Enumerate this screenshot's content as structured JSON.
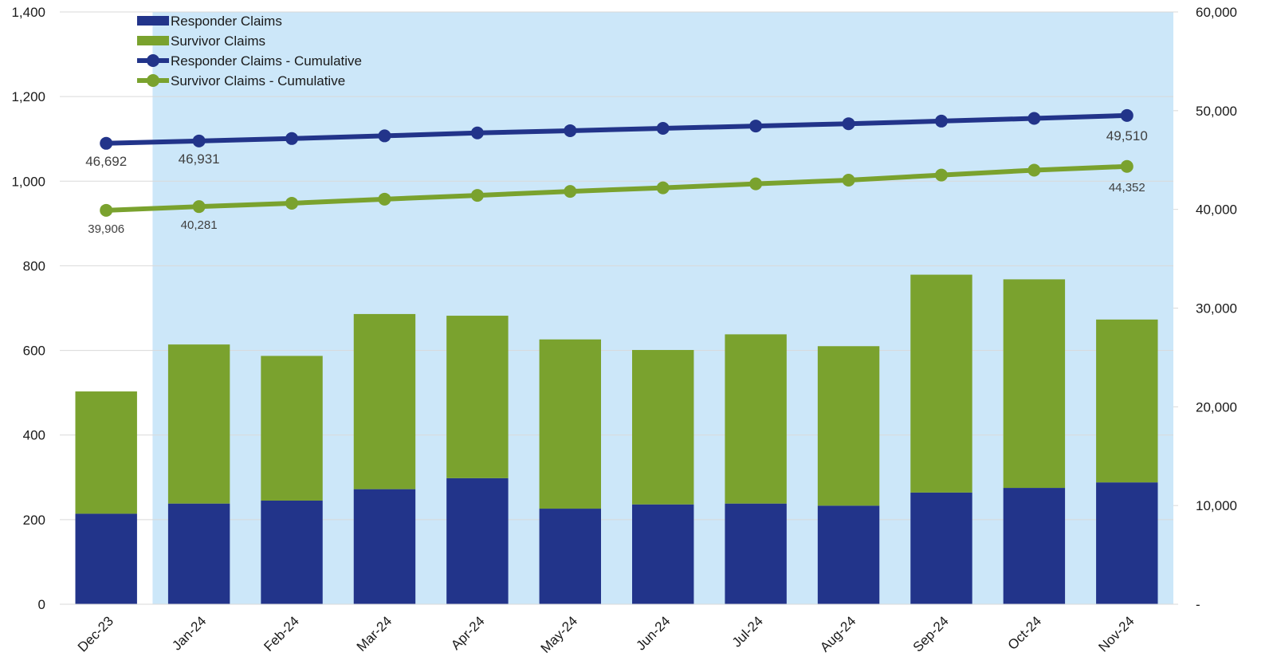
{
  "chart_data": {
    "type": "bar",
    "stacked": true,
    "categories": [
      "Dec-23",
      "Jan-24",
      "Feb-24",
      "Mar-24",
      "Apr-24",
      "May-24",
      "Jun-24",
      "Jul-24",
      "Aug-24",
      "Sep-24",
      "Oct-24",
      "Nov-24"
    ],
    "series": [
      {
        "name": "Responder Claims",
        "kind": "bar",
        "axis": "left",
        "color": "#22348a",
        "values": [
          214,
          238,
          245,
          272,
          298,
          226,
          236,
          238,
          233,
          264,
          275,
          288
        ]
      },
      {
        "name": "Survivor Claims",
        "kind": "bar",
        "axis": "left",
        "color": "#7aa22e",
        "values": [
          289,
          376,
          342,
          414,
          384,
          400,
          365,
          400,
          377,
          515,
          493,
          385
        ]
      },
      {
        "name": "Responder Claims - Cumulative",
        "kind": "line",
        "axis": "right",
        "color": "#22348a",
        "values": [
          46692,
          46931,
          47176,
          47448,
          47746,
          47972,
          48208,
          48446,
          48679,
          48943,
          49218,
          49510
        ]
      },
      {
        "name": "Survivor Claims - Cumulative",
        "kind": "line",
        "axis": "right",
        "color": "#7aa22e",
        "values": [
          39906,
          40281,
          40623,
          41037,
          41421,
          41821,
          42186,
          42586,
          42963,
          43478,
          43971,
          44352
        ]
      }
    ],
    "data_labels": [
      {
        "series": 2,
        "index": 0,
        "text": "46,692"
      },
      {
        "series": 2,
        "index": 1,
        "text": "46,931"
      },
      {
        "series": 2,
        "index": 11,
        "text": "49,510"
      },
      {
        "series": 3,
        "index": 0,
        "text": "39,906"
      },
      {
        "series": 3,
        "index": 1,
        "text": "40,281"
      },
      {
        "series": 3,
        "index": 11,
        "text": "44,352"
      }
    ],
    "y_left": {
      "ylim": [
        0,
        1400
      ],
      "ticks": [
        0,
        200,
        400,
        600,
        800,
        1000,
        1200,
        1400
      ],
      "tick_labels": [
        "0",
        "200",
        "400",
        "600",
        "800",
        "1,000",
        "1,200",
        "1,400"
      ]
    },
    "y_right": {
      "ylim": [
        0,
        60000
      ],
      "ticks": [
        0,
        10000,
        20000,
        30000,
        40000,
        50000,
        60000
      ],
      "tick_labels": [
        "-",
        "10,000",
        "20,000",
        "30,000",
        "40,000",
        "50,000",
        "60,000"
      ]
    },
    "highlight": {
      "from_category": "Jan-24",
      "to_category": "Nov-24",
      "color": "#cce7f9"
    },
    "grid": true,
    "legend": "top-left"
  }
}
